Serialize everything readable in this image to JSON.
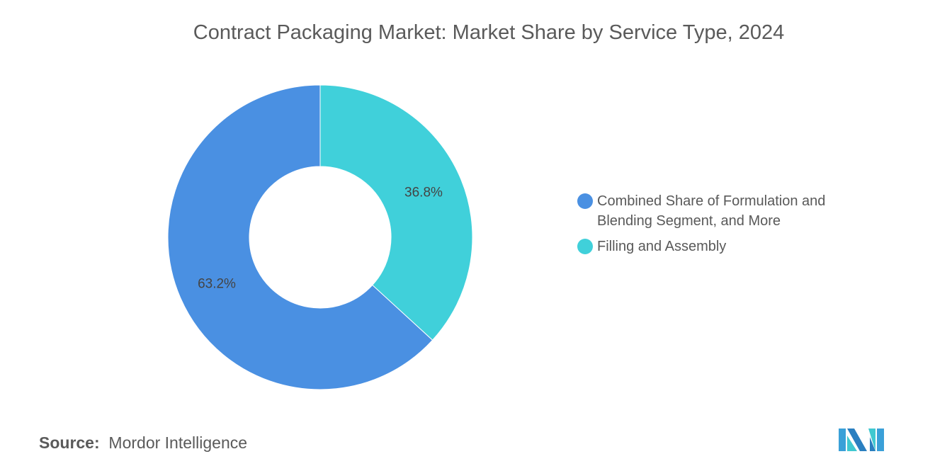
{
  "chart_data": {
    "type": "pie",
    "donut": true,
    "title": "Contract Packaging Market: Market Share by Service Type, 2024",
    "slices": [
      {
        "name": "Filling and Assembly",
        "value": 36.8,
        "label": "36.8%",
        "color": "#40d0da"
      },
      {
        "name": "Combined Share of Formulation and Blending Segment, and More",
        "value": 63.2,
        "label": "63.2%",
        "color": "#4a90e2"
      }
    ],
    "legend": [
      {
        "label": "Combined Share of Formulation and Blending Segment, and More",
        "color": "#4a90e2"
      },
      {
        "label": "Filling and Assembly",
        "color": "#40d0da"
      }
    ],
    "legend_position": "right"
  },
  "source": {
    "label": "Source:",
    "value": "Mordor Intelligence"
  },
  "logo": "Mordor Intelligence logo"
}
